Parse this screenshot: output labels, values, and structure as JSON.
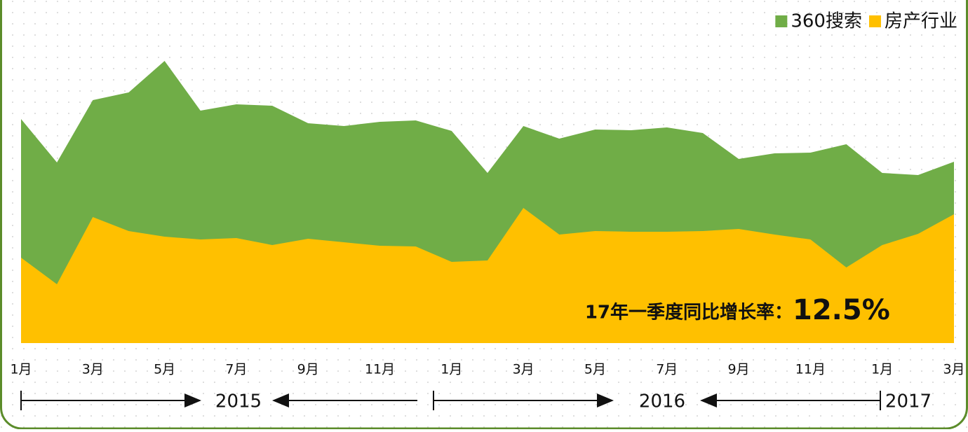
{
  "chart_data": {
    "type": "area",
    "categories": [
      "1月",
      null,
      "3月",
      null,
      "5月",
      null,
      "7月",
      null,
      "9月",
      null,
      "11月",
      null,
      "1月",
      null,
      "3月",
      null,
      "5月",
      null,
      "7月",
      null,
      "9月",
      null,
      "11月",
      null,
      "1月",
      null,
      "3月"
    ],
    "series": [
      {
        "name": "360搜索",
        "color": "#70ad47",
        "values": [
          80,
          64.5,
          86.75,
          89.5,
          100.75,
          83,
          85.25,
          84.75,
          78.5,
          77.5,
          79,
          79.5,
          75.75,
          60.75,
          77.5,
          73,
          76.25,
          76,
          77,
          75,
          65.75,
          67.75,
          68,
          71,
          60.75,
          60,
          64.75
        ]
      },
      {
        "name": "房产行业",
        "color": "#ffc000",
        "values": [
          30.5,
          21,
          45,
          40,
          38,
          37,
          37.5,
          35,
          37.25,
          36,
          34.75,
          34.5,
          29,
          29.5,
          48.25,
          38.75,
          40,
          39.75,
          39.75,
          40,
          40.75,
          38.75,
          37,
          27,
          35,
          39,
          46
        ]
      }
    ],
    "ylim": [
      0,
      110
    ],
    "years": [
      "2015",
      "2016",
      "2017"
    ],
    "annotation": {
      "text": "17年一季度同比增长率：",
      "value": "12.5%"
    },
    "legend": "top-right"
  }
}
